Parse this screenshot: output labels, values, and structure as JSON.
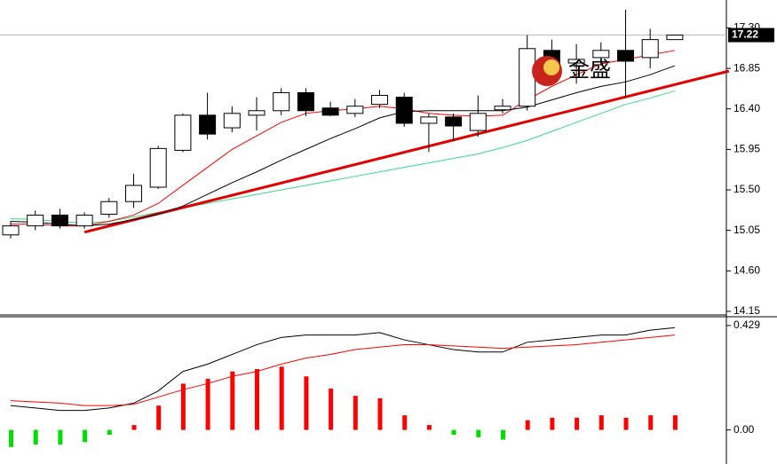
{
  "logo_text": "金盛",
  "chart_data": [
    {
      "type": "candlestick",
      "open": [
        15.0,
        15.1,
        15.22,
        15.1,
        15.23,
        15.37,
        15.53,
        15.94,
        16.33,
        16.19,
        16.33,
        16.38,
        16.58,
        16.41,
        16.35,
        16.45,
        16.53,
        16.24,
        16.31,
        16.16,
        16.39,
        16.43,
        17.05,
        16.91,
        16.97,
        17.05,
        16.97,
        17.17
      ],
      "high": [
        15.15,
        15.27,
        15.29,
        15.25,
        15.41,
        15.68,
        15.99,
        16.35,
        16.58,
        16.43,
        16.53,
        16.63,
        16.63,
        16.48,
        16.51,
        16.61,
        16.58,
        16.35,
        16.35,
        16.55,
        16.51,
        17.22,
        17.17,
        17.12,
        17.14,
        17.5,
        17.29,
        17.22
      ],
      "low": [
        14.96,
        15.05,
        15.07,
        15.07,
        15.19,
        15.3,
        15.51,
        15.92,
        16.06,
        16.14,
        16.16,
        16.33,
        16.32,
        16.32,
        16.31,
        16.41,
        16.2,
        15.92,
        16.04,
        16.09,
        16.35,
        16.38,
        16.73,
        16.68,
        16.88,
        16.53,
        16.85,
        17.17
      ],
      "close": [
        15.1,
        15.22,
        15.1,
        15.22,
        15.37,
        15.55,
        15.96,
        16.33,
        16.12,
        16.35,
        16.38,
        16.58,
        16.38,
        16.33,
        16.43,
        16.55,
        16.24,
        16.31,
        16.21,
        16.35,
        16.43,
        17.07,
        16.88,
        16.95,
        17.05,
        16.93,
        17.17,
        17.22
      ],
      "up_color": "#ffffff",
      "down_color": "#000000",
      "edge_color": "#000000",
      "series": [
        {
          "color": "#ff0000",
          "values": [
            15.12,
            15.12,
            15.1,
            15.1,
            15.15,
            15.22,
            15.35,
            15.55,
            15.75,
            15.95,
            16.1,
            16.25,
            16.35,
            16.38,
            16.4,
            16.43,
            16.4,
            16.35,
            16.33,
            16.32,
            16.33,
            16.5,
            16.65,
            16.78,
            16.9,
            16.95,
            17.0,
            17.05
          ]
        },
        {
          "color": "#000000",
          "values": [
            15.15,
            15.14,
            15.12,
            15.1,
            15.12,
            15.17,
            15.23,
            15.32,
            15.45,
            15.58,
            15.7,
            15.83,
            15.95,
            16.07,
            16.18,
            16.3,
            16.37,
            16.38,
            16.38,
            16.38,
            16.38,
            16.42,
            16.5,
            16.58,
            16.65,
            16.7,
            16.78,
            16.88
          ]
        },
        {
          "color": "#33dd88",
          "values": [
            15.18,
            15.17,
            15.15,
            15.13,
            15.15,
            15.2,
            15.25,
            15.3,
            15.35,
            15.4,
            15.45,
            15.5,
            15.55,
            15.6,
            15.65,
            15.7,
            15.75,
            15.8,
            15.85,
            15.9,
            15.97,
            16.05,
            16.15,
            16.25,
            16.35,
            16.45,
            16.52,
            16.6
          ]
        }
      ],
      "trendline": {
        "x": [
          3,
          29.2
        ],
        "y": [
          15.03,
          16.82
        ],
        "color": "#e00000"
      },
      "current_price": {
        "value": 17.22,
        "label": "17.22"
      },
      "ylim": [
        14.13,
        17.61
      ],
      "yticks": [
        {
          "value": 17.3,
          "label": "17.30"
        },
        {
          "value": 16.85,
          "label": "16.85"
        },
        {
          "value": 16.4,
          "label": "16.40"
        },
        {
          "value": 15.95,
          "label": "15.95"
        },
        {
          "value": 15.5,
          "label": "15.50"
        },
        {
          "value": 15.05,
          "label": "15.05"
        },
        {
          "value": 14.6,
          "label": "14.60"
        },
        {
          "value": 14.15,
          "label": "14.15"
        }
      ]
    },
    {
      "type": "macd",
      "histogram": [
        -0.07,
        -0.06,
        -0.06,
        -0.05,
        -0.02,
        0.02,
        0.1,
        0.19,
        0.21,
        0.24,
        0.25,
        0.26,
        0.22,
        0.17,
        0.14,
        0.13,
        0.06,
        0.02,
        -0.02,
        -0.03,
        -0.04,
        0.04,
        0.05,
        0.05,
        0.06,
        0.05,
        0.06,
        0.06
      ],
      "positive_color": "#ff0000",
      "negative_color": "#00dd00",
      "series": [
        {
          "color": "#000000",
          "values": [
            0.1,
            0.09,
            0.08,
            0.08,
            0.09,
            0.11,
            0.16,
            0.24,
            0.27,
            0.31,
            0.35,
            0.38,
            0.39,
            0.39,
            0.39,
            0.4,
            0.37,
            0.35,
            0.33,
            0.32,
            0.32,
            0.36,
            0.37,
            0.38,
            0.39,
            0.39,
            0.41,
            0.42
          ]
        },
        {
          "color": "#ff0000",
          "values": [
            0.12,
            0.115,
            0.11,
            0.1,
            0.1,
            0.105,
            0.135,
            0.165,
            0.19,
            0.22,
            0.24,
            0.27,
            0.295,
            0.31,
            0.33,
            0.34,
            0.35,
            0.35,
            0.345,
            0.34,
            0.335,
            0.34,
            0.345,
            0.35,
            0.36,
            0.37,
            0.38,
            0.39
          ]
        }
      ],
      "ylim": [
        -0.14,
        0.465
      ],
      "yticks": [
        0.429,
        {
          "value": 0,
          "label": "0.00"
        }
      ]
    }
  ]
}
